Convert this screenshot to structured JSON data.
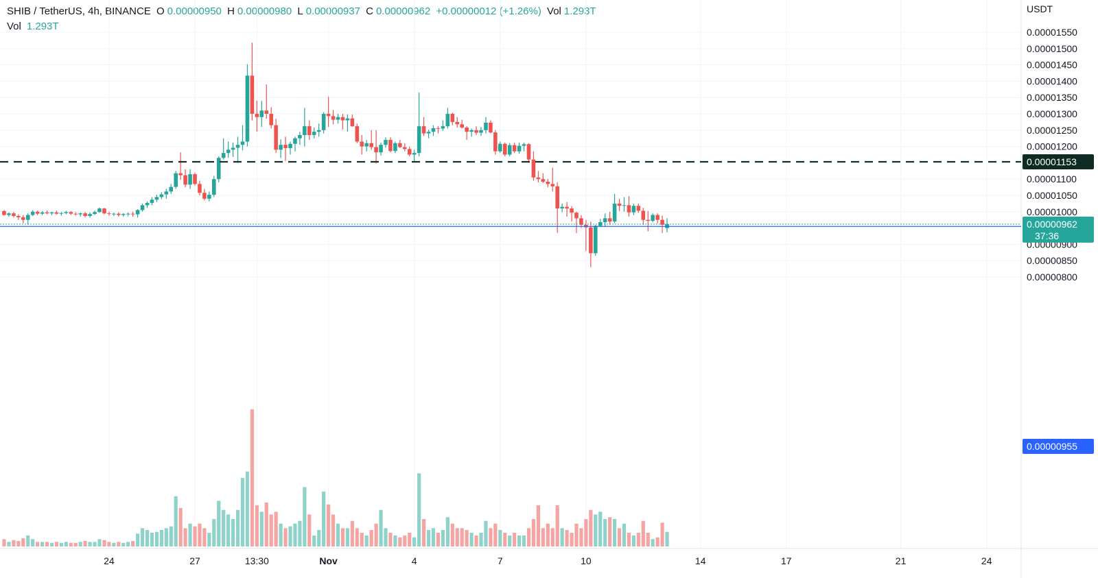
{
  "header": {
    "symbol": "SHIB / TetherUS, 4h, BINANCE",
    "open_label": "O",
    "open": "0.00000950",
    "high_label": "H",
    "high": "0.00000980",
    "low_label": "L",
    "low": "0.00000937",
    "close_label": "C",
    "close": "0.00000962",
    "change": "+0.00000012 (+1.26%)",
    "vol_label": "Vol",
    "vol": "1.293T"
  },
  "volume_legend": {
    "label": "Vol",
    "value": "1.293T"
  },
  "colors": {
    "up": "#26a69a",
    "down": "#ef5350",
    "up_vol": "#8fd2c9",
    "down_vol": "#f4a5a3",
    "grid": "#f0f3fa",
    "text": "#131722",
    "blue_line": "#2962ff"
  },
  "chart_data": {
    "type": "candlestick",
    "title": "SHIB / TetherUS, 4h, BINANCE",
    "y_unit": "USDT",
    "ylim": [
      7.6e-06,
      1.58e-05
    ],
    "y_ticks": [
      "0.00001550",
      "0.00001500",
      "0.00001450",
      "0.00001400",
      "0.00001350",
      "0.00001300",
      "0.00001250",
      "0.00001200",
      "0.00001100",
      "0.00001050",
      "0.00001000",
      "0.00000900",
      "0.00000850",
      "0.00000800"
    ],
    "x_ticks": [
      {
        "label": "24",
        "bar": 22
      },
      {
        "label": "27",
        "bar": 40
      },
      {
        "label": "13:30",
        "bar": 53
      },
      {
        "label": "Nov",
        "bar": 68
      },
      {
        "label": "4",
        "bar": 86
      },
      {
        "label": "7",
        "bar": 104
      },
      {
        "label": "10",
        "bar": 122
      },
      {
        "label": "14",
        "bar": 146
      },
      {
        "label": "17",
        "bar": 164
      },
      {
        "label": "21",
        "bar": 188
      },
      {
        "label": "24",
        "bar": 206
      }
    ],
    "price_lines": [
      {
        "price": 1.153e-05,
        "label": "0.00001153",
        "style": "dashed"
      },
      {
        "price": 9.55e-06,
        "label": "0.00000955",
        "style": "solid"
      }
    ],
    "last_price": {
      "price": 9.62e-06,
      "label": "0.00000962",
      "countdown": "37:36"
    },
    "candles": [
      {
        "o": 1.002,
        "h": 1.005,
        "l": 0.988,
        "c": 0.99,
        "v": 0.8
      },
      {
        "o": 0.99,
        "h": 0.998,
        "l": 0.985,
        "c": 0.995,
        "v": 0.5
      },
      {
        "o": 0.995,
        "h": 0.999,
        "l": 0.982,
        "c": 0.987,
        "v": 0.7
      },
      {
        "o": 0.987,
        "h": 0.992,
        "l": 0.975,
        "c": 0.983,
        "v": 0.6
      },
      {
        "o": 0.983,
        "h": 0.99,
        "l": 0.965,
        "c": 0.975,
        "v": 0.9
      },
      {
        "o": 0.975,
        "h": 0.995,
        "l": 0.96,
        "c": 0.99,
        "v": 1.2
      },
      {
        "o": 0.99,
        "h": 1.005,
        "l": 0.987,
        "c": 1.0,
        "v": 0.8
      },
      {
        "o": 1.0,
        "h": 1.004,
        "l": 0.99,
        "c": 0.994,
        "v": 0.5
      },
      {
        "o": 0.994,
        "h": 1.002,
        "l": 0.99,
        "c": 0.998,
        "v": 0.5
      },
      {
        "o": 0.998,
        "h": 1.004,
        "l": 0.992,
        "c": 0.995,
        "v": 0.5
      },
      {
        "o": 0.995,
        "h": 1.0,
        "l": 0.99,
        "c": 0.998,
        "v": 0.4
      },
      {
        "o": 0.998,
        "h": 1.003,
        "l": 0.991,
        "c": 0.994,
        "v": 0.5
      },
      {
        "o": 0.994,
        "h": 0.999,
        "l": 0.988,
        "c": 0.996,
        "v": 0.4
      },
      {
        "o": 0.996,
        "h": 1.003,
        "l": 0.992,
        "c": 0.999,
        "v": 0.5
      },
      {
        "o": 0.999,
        "h": 1.002,
        "l": 0.99,
        "c": 0.994,
        "v": 0.4
      },
      {
        "o": 0.994,
        "h": 0.999,
        "l": 0.988,
        "c": 0.992,
        "v": 0.4
      },
      {
        "o": 0.992,
        "h": 0.998,
        "l": 0.985,
        "c": 0.995,
        "v": 0.5
      },
      {
        "o": 0.995,
        "h": 0.999,
        "l": 0.982,
        "c": 0.987,
        "v": 0.6
      },
      {
        "o": 0.987,
        "h": 0.998,
        "l": 0.982,
        "c": 0.993,
        "v": 0.5
      },
      {
        "o": 0.993,
        "h": 1.003,
        "l": 0.99,
        "c": 0.999,
        "v": 0.5
      },
      {
        "o": 0.999,
        "h": 1.013,
        "l": 0.997,
        "c": 1.01,
        "v": 0.8
      },
      {
        "o": 1.01,
        "h": 1.012,
        "l": 0.992,
        "c": 0.995,
        "v": 0.7
      },
      {
        "o": 0.995,
        "h": 1.0,
        "l": 0.988,
        "c": 0.993,
        "v": 0.5
      },
      {
        "o": 0.993,
        "h": 0.997,
        "l": 0.987,
        "c": 0.994,
        "v": 0.4
      },
      {
        "o": 0.994,
        "h": 0.998,
        "l": 0.985,
        "c": 0.99,
        "v": 0.5
      },
      {
        "o": 0.99,
        "h": 0.996,
        "l": 0.985,
        "c": 0.993,
        "v": 0.4
      },
      {
        "o": 0.993,
        "h": 0.998,
        "l": 0.986,
        "c": 0.994,
        "v": 0.5
      },
      {
        "o": 0.994,
        "h": 1.0,
        "l": 0.985,
        "c": 0.992,
        "v": 0.6
      },
      {
        "o": 0.992,
        "h": 1.008,
        "l": 0.982,
        "c": 1.005,
        "v": 1.4
      },
      {
        "o": 1.005,
        "h": 1.025,
        "l": 1.0,
        "c": 1.02,
        "v": 2.0
      },
      {
        "o": 1.02,
        "h": 1.032,
        "l": 1.012,
        "c": 1.027,
        "v": 1.8
      },
      {
        "o": 1.027,
        "h": 1.045,
        "l": 1.02,
        "c": 1.037,
        "v": 1.5
      },
      {
        "o": 1.037,
        "h": 1.052,
        "l": 1.03,
        "c": 1.045,
        "v": 1.6
      },
      {
        "o": 1.045,
        "h": 1.06,
        "l": 1.038,
        "c": 1.053,
        "v": 1.8
      },
      {
        "o": 1.053,
        "h": 1.07,
        "l": 1.04,
        "c": 1.062,
        "v": 2.0
      },
      {
        "o": 1.062,
        "h": 1.085,
        "l": 1.055,
        "c": 1.076,
        "v": 2.2
      },
      {
        "o": 1.076,
        "h": 1.125,
        "l": 1.07,
        "c": 1.118,
        "v": 5.5
      },
      {
        "o": 1.118,
        "h": 1.182,
        "l": 1.098,
        "c": 1.112,
        "v": 4.2
      },
      {
        "o": 1.112,
        "h": 1.13,
        "l": 1.075,
        "c": 1.083,
        "v": 2.0
      },
      {
        "o": 1.083,
        "h": 1.13,
        "l": 1.07,
        "c": 1.115,
        "v": 2.5
      },
      {
        "o": 1.115,
        "h": 1.12,
        "l": 1.08,
        "c": 1.085,
        "v": 2.2
      },
      {
        "o": 1.085,
        "h": 1.095,
        "l": 1.05,
        "c": 1.058,
        "v": 2.5
      },
      {
        "o": 1.058,
        "h": 1.07,
        "l": 1.035,
        "c": 1.04,
        "v": 2.0
      },
      {
        "o": 1.04,
        "h": 1.062,
        "l": 1.032,
        "c": 1.052,
        "v": 1.5
      },
      {
        "o": 1.052,
        "h": 1.11,
        "l": 1.045,
        "c": 1.1,
        "v": 3.0
      },
      {
        "o": 1.1,
        "h": 1.17,
        "l": 1.09,
        "c": 1.165,
        "v": 5.0
      },
      {
        "o": 1.165,
        "h": 1.225,
        "l": 1.16,
        "c": 1.18,
        "v": 4.0
      },
      {
        "o": 1.18,
        "h": 1.215,
        "l": 1.165,
        "c": 1.19,
        "v": 3.5
      },
      {
        "o": 1.19,
        "h": 1.212,
        "l": 1.168,
        "c": 1.196,
        "v": 3.0
      },
      {
        "o": 1.196,
        "h": 1.23,
        "l": 1.15,
        "c": 1.205,
        "v": 4.0
      },
      {
        "o": 1.205,
        "h": 1.265,
        "l": 1.188,
        "c": 1.215,
        "v": 7.5
      },
      {
        "o": 1.215,
        "h": 1.452,
        "l": 1.2,
        "c": 1.417,
        "v": 8.2
      },
      {
        "o": 1.417,
        "h": 1.518,
        "l": 1.28,
        "c": 1.3,
        "v": 15.0
      },
      {
        "o": 1.3,
        "h": 1.34,
        "l": 1.245,
        "c": 1.29,
        "v": 4.5
      },
      {
        "o": 1.29,
        "h": 1.34,
        "l": 1.26,
        "c": 1.31,
        "v": 3.8
      },
      {
        "o": 1.31,
        "h": 1.39,
        "l": 1.285,
        "c": 1.3,
        "v": 4.8
      },
      {
        "o": 1.3,
        "h": 1.32,
        "l": 1.255,
        "c": 1.265,
        "v": 3.5
      },
      {
        "o": 1.265,
        "h": 1.285,
        "l": 1.18,
        "c": 1.19,
        "v": 3.8
      },
      {
        "o": 1.19,
        "h": 1.222,
        "l": 1.165,
        "c": 1.205,
        "v": 2.5
      },
      {
        "o": 1.205,
        "h": 1.23,
        "l": 1.155,
        "c": 1.195,
        "v": 2.0
      },
      {
        "o": 1.195,
        "h": 1.215,
        "l": 1.175,
        "c": 1.208,
        "v": 2.2
      },
      {
        "o": 1.208,
        "h": 1.23,
        "l": 1.185,
        "c": 1.225,
        "v": 2.5
      },
      {
        "o": 1.225,
        "h": 1.245,
        "l": 1.205,
        "c": 1.235,
        "v": 2.8
      },
      {
        "o": 1.235,
        "h": 1.318,
        "l": 1.2,
        "c": 1.262,
        "v": 6.5
      },
      {
        "o": 1.262,
        "h": 1.28,
        "l": 1.22,
        "c": 1.235,
        "v": 3.5
      },
      {
        "o": 1.235,
        "h": 1.258,
        "l": 1.225,
        "c": 1.245,
        "v": 1.2
      },
      {
        "o": 1.245,
        "h": 1.27,
        "l": 1.23,
        "c": 1.25,
        "v": 1.8
      },
      {
        "o": 1.25,
        "h": 1.305,
        "l": 1.24,
        "c": 1.3,
        "v": 6.0
      },
      {
        "o": 1.3,
        "h": 1.352,
        "l": 1.26,
        "c": 1.293,
        "v": 4.6
      },
      {
        "o": 1.293,
        "h": 1.312,
        "l": 1.268,
        "c": 1.282,
        "v": 3.5
      },
      {
        "o": 1.282,
        "h": 1.3,
        "l": 1.27,
        "c": 1.29,
        "v": 2.5
      },
      {
        "o": 1.29,
        "h": 1.3,
        "l": 1.252,
        "c": 1.28,
        "v": 2.0
      },
      {
        "o": 1.28,
        "h": 1.298,
        "l": 1.245,
        "c": 1.286,
        "v": 2.0
      },
      {
        "o": 1.286,
        "h": 1.298,
        "l": 1.26,
        "c": 1.262,
        "v": 2.8
      },
      {
        "o": 1.262,
        "h": 1.27,
        "l": 1.21,
        "c": 1.215,
        "v": 2.0
      },
      {
        "o": 1.215,
        "h": 1.235,
        "l": 1.175,
        "c": 1.2,
        "v": 1.5
      },
      {
        "o": 1.2,
        "h": 1.22,
        "l": 1.185,
        "c": 1.21,
        "v": 1.2
      },
      {
        "o": 1.21,
        "h": 1.25,
        "l": 1.19,
        "c": 1.198,
        "v": 1.8
      },
      {
        "o": 1.198,
        "h": 1.25,
        "l": 1.148,
        "c": 1.182,
        "v": 2.5
      },
      {
        "o": 1.182,
        "h": 1.212,
        "l": 1.172,
        "c": 1.205,
        "v": 4.0
      },
      {
        "o": 1.205,
        "h": 1.228,
        "l": 1.196,
        "c": 1.22,
        "v": 2.0
      },
      {
        "o": 1.22,
        "h": 1.228,
        "l": 1.182,
        "c": 1.186,
        "v": 1.5
      },
      {
        "o": 1.186,
        "h": 1.215,
        "l": 1.18,
        "c": 1.21,
        "v": 1.2
      },
      {
        "o": 1.21,
        "h": 1.22,
        "l": 1.195,
        "c": 1.198,
        "v": 1.0
      },
      {
        "o": 1.198,
        "h": 1.21,
        "l": 1.185,
        "c": 1.192,
        "v": 1.2
      },
      {
        "o": 1.192,
        "h": 1.2,
        "l": 1.17,
        "c": 1.175,
        "v": 1.5
      },
      {
        "o": 1.175,
        "h": 1.19,
        "l": 1.155,
        "c": 1.18,
        "v": 1.0
      },
      {
        "o": 1.18,
        "h": 1.365,
        "l": 1.17,
        "c": 1.262,
        "v": 8.0
      },
      {
        "o": 1.262,
        "h": 1.29,
        "l": 1.232,
        "c": 1.24,
        "v": 3.0
      },
      {
        "o": 1.24,
        "h": 1.252,
        "l": 1.225,
        "c": 1.245,
        "v": 1.8
      },
      {
        "o": 1.245,
        "h": 1.265,
        "l": 1.232,
        "c": 1.256,
        "v": 2.0
      },
      {
        "o": 1.256,
        "h": 1.262,
        "l": 1.24,
        "c": 1.255,
        "v": 1.5
      },
      {
        "o": 1.255,
        "h": 1.28,
        "l": 1.248,
        "c": 1.262,
        "v": 1.8
      },
      {
        "o": 1.262,
        "h": 1.318,
        "l": 1.255,
        "c": 1.3,
        "v": 3.2
      },
      {
        "o": 1.3,
        "h": 1.303,
        "l": 1.265,
        "c": 1.275,
        "v": 2.5
      },
      {
        "o": 1.275,
        "h": 1.29,
        "l": 1.258,
        "c": 1.268,
        "v": 2.0
      },
      {
        "o": 1.268,
        "h": 1.282,
        "l": 1.255,
        "c": 1.258,
        "v": 2.0
      },
      {
        "o": 1.258,
        "h": 1.262,
        "l": 1.22,
        "c": 1.245,
        "v": 1.8
      },
      {
        "o": 1.245,
        "h": 1.255,
        "l": 1.23,
        "c": 1.25,
        "v": 1.5
      },
      {
        "o": 1.25,
        "h": 1.262,
        "l": 1.235,
        "c": 1.242,
        "v": 1.2
      },
      {
        "o": 1.242,
        "h": 1.26,
        "l": 1.232,
        "c": 1.25,
        "v": 1.5
      },
      {
        "o": 1.25,
        "h": 1.29,
        "l": 1.24,
        "c": 1.273,
        "v": 2.8
      },
      {
        "o": 1.273,
        "h": 1.28,
        "l": 1.24,
        "c": 1.243,
        "v": 2.0
      },
      {
        "o": 1.243,
        "h": 1.25,
        "l": 1.175,
        "c": 1.185,
        "v": 2.5
      },
      {
        "o": 1.185,
        "h": 1.215,
        "l": 1.18,
        "c": 1.208,
        "v": 1.8
      },
      {
        "o": 1.208,
        "h": 1.212,
        "l": 1.17,
        "c": 1.175,
        "v": 1.5
      },
      {
        "o": 1.175,
        "h": 1.21,
        "l": 1.17,
        "c": 1.204,
        "v": 1.2
      },
      {
        "o": 1.204,
        "h": 1.212,
        "l": 1.18,
        "c": 1.185,
        "v": 1.5
      },
      {
        "o": 1.185,
        "h": 1.212,
        "l": 1.178,
        "c": 1.202,
        "v": 1.2
      },
      {
        "o": 1.202,
        "h": 1.212,
        "l": 1.185,
        "c": 1.207,
        "v": 1.2
      },
      {
        "o": 1.207,
        "h": 1.21,
        "l": 1.15,
        "c": 1.16,
        "v": 2.0
      },
      {
        "o": 1.16,
        "h": 1.185,
        "l": 1.095,
        "c": 1.105,
        "v": 3.0
      },
      {
        "o": 1.105,
        "h": 1.125,
        "l": 1.09,
        "c": 1.1,
        "v": 4.5
      },
      {
        "o": 1.1,
        "h": 1.118,
        "l": 1.088,
        "c": 1.092,
        "v": 2.0
      },
      {
        "o": 1.092,
        "h": 1.1,
        "l": 1.075,
        "c": 1.085,
        "v": 2.5
      },
      {
        "o": 1.085,
        "h": 1.135,
        "l": 1.062,
        "c": 1.078,
        "v": 2.0
      },
      {
        "o": 1.078,
        "h": 1.09,
        "l": 0.935,
        "c": 1.01,
        "v": 4.5
      },
      {
        "o": 1.01,
        "h": 1.025,
        "l": 0.998,
        "c": 1.015,
        "v": 2.0
      },
      {
        "o": 1.015,
        "h": 1.03,
        "l": 0.985,
        "c": 1.01,
        "v": 1.8
      },
      {
        "o": 1.01,
        "h": 1.017,
        "l": 0.97,
        "c": 0.997,
        "v": 1.5
      },
      {
        "o": 0.997,
        "h": 1.0,
        "l": 0.935,
        "c": 0.98,
        "v": 2.5
      },
      {
        "o": 0.98,
        "h": 0.99,
        "l": 0.95,
        "c": 0.96,
        "v": 2.0
      },
      {
        "o": 0.96,
        "h": 0.975,
        "l": 0.88,
        "c": 0.952,
        "v": 3.0
      },
      {
        "o": 0.952,
        "h": 0.97,
        "l": 0.83,
        "c": 0.873,
        "v": 4.0
      },
      {
        "o": 0.873,
        "h": 0.96,
        "l": 0.865,
        "c": 0.957,
        "v": 3.5
      },
      {
        "o": 0.957,
        "h": 0.978,
        "l": 0.955,
        "c": 0.968,
        "v": 3.8
      },
      {
        "o": 0.968,
        "h": 0.995,
        "l": 0.955,
        "c": 0.98,
        "v": 3.0
      },
      {
        "o": 0.98,
        "h": 1.0,
        "l": 0.96,
        "c": 0.97,
        "v": 3.2
      },
      {
        "o": 0.97,
        "h": 1.055,
        "l": 0.965,
        "c": 1.025,
        "v": 3.0
      },
      {
        "o": 1.025,
        "h": 1.04,
        "l": 1.002,
        "c": 1.018,
        "v": 2.0
      },
      {
        "o": 1.018,
        "h": 1.045,
        "l": 1.0,
        "c": 1.02,
        "v": 2.5
      },
      {
        "o": 1.02,
        "h": 1.048,
        "l": 0.985,
        "c": 0.998,
        "v": 1.5
      },
      {
        "o": 0.998,
        "h": 1.025,
        "l": 0.99,
        "c": 1.018,
        "v": 1.2
      },
      {
        "o": 1.018,
        "h": 1.025,
        "l": 0.997,
        "c": 1.003,
        "v": 1.5
      },
      {
        "o": 1.003,
        "h": 1.012,
        "l": 0.96,
        "c": 0.975,
        "v": 2.8
      },
      {
        "o": 0.975,
        "h": 1.002,
        "l": 0.94,
        "c": 0.972,
        "v": 1.5
      },
      {
        "o": 0.972,
        "h": 0.995,
        "l": 0.968,
        "c": 0.99,
        "v": 0.8
      },
      {
        "o": 0.99,
        "h": 0.995,
        "l": 0.965,
        "c": 0.975,
        "v": 1.0
      },
      {
        "o": 0.975,
        "h": 0.988,
        "l": 0.935,
        "c": 0.96,
        "v": 2.6
      },
      {
        "o": 0.95,
        "h": 0.98,
        "l": 0.937,
        "c": 0.962,
        "v": 1.6
      }
    ]
  }
}
